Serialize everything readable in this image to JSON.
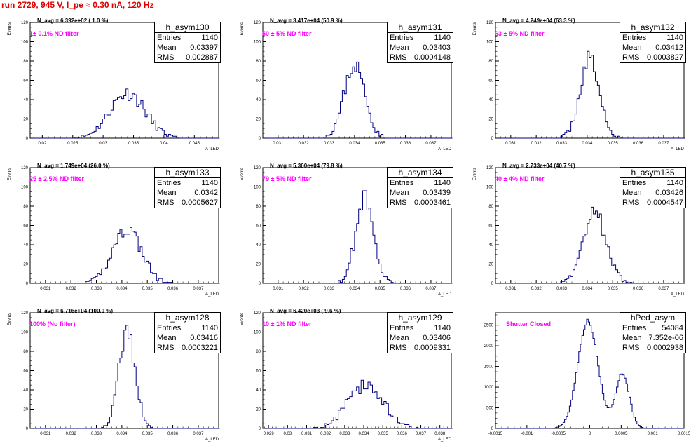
{
  "run_title": "run 2729,   945 V, I_pe ≈ 0.30 nA, 120 Hz",
  "stat_labels": {
    "entries": "Entries",
    "mean": "Mean",
    "rms": "RMS"
  },
  "colors": {
    "title": "#e00000",
    "histogram": "#00007f",
    "annotation": "#ff00ff"
  },
  "chart_data": [
    {
      "type": "histogram",
      "name": "h_asym130",
      "navg": "N_avg = 6.392e+02 ( 1.0 %)",
      "filter": "1± 0.1% ND filter",
      "stats": {
        "entries": "1140",
        "mean": "0.03397",
        "rms": "0.002887"
      },
      "ylabel": "Events",
      "xlabel": "A_LED",
      "xlim": [
        0.018,
        0.049
      ],
      "ylim": [
        0,
        120
      ],
      "xticks": [
        0.02,
        0.025,
        0.03,
        0.035,
        0.04,
        0.045
      ],
      "xtick_labels": [
        "0.02",
        "0.025",
        "0.03",
        "0.035",
        "0.04",
        "0.045"
      ],
      "yticks": [
        0,
        20,
        40,
        60,
        80,
        100,
        120
      ],
      "profile": [
        {
          "center": 0.034,
          "sigma": 0.0029,
          "amp": 47
        }
      ],
      "bin_width": 0.00035,
      "seed": 11
    },
    {
      "type": "histogram",
      "name": "h_asym131",
      "navg": "N_avg = 3.417e+04 (50.9 %)",
      "filter": "50 ± 5% ND filter",
      "stats": {
        "entries": "1140",
        "mean": "0.03403",
        "rms": "0.0004148"
      },
      "ylabel": "Events",
      "xlabel": "A_LED",
      "xlim": [
        0.0304,
        0.0378
      ],
      "ylim": [
        0,
        120
      ],
      "xticks": [
        0.031,
        0.032,
        0.033,
        0.034,
        0.035,
        0.036,
        0.037
      ],
      "xtick_labels": [
        "0.031",
        "0.032",
        "0.033",
        "0.034",
        "0.035",
        "0.036",
        "0.037"
      ],
      "yticks": [
        0,
        20,
        40,
        60,
        80,
        100,
        120
      ],
      "profile": [
        {
          "center": 0.034,
          "sigma": 0.00041,
          "amp": 76
        }
      ],
      "bin_width": 8e-05,
      "seed": 23
    },
    {
      "type": "histogram",
      "name": "h_asym132",
      "navg": "N_avg = 4.249e+04 (63.3 %)",
      "filter": "63 ± 5% ND filter",
      "stats": {
        "entries": "1140",
        "mean": "0.03412",
        "rms": "0.0003827"
      },
      "ylabel": "Events",
      "xlabel": "A_LED",
      "xlim": [
        0.0304,
        0.0378
      ],
      "ylim": [
        0,
        120
      ],
      "xticks": [
        0.031,
        0.032,
        0.033,
        0.034,
        0.035,
        0.036,
        0.037
      ],
      "xtick_labels": [
        "0.031",
        "0.032",
        "0.033",
        "0.034",
        "0.035",
        "0.036",
        "0.037"
      ],
      "yticks": [
        0,
        20,
        40,
        60,
        80,
        100,
        120
      ],
      "profile": [
        {
          "center": 0.0341,
          "sigma": 0.00038,
          "amp": 82
        }
      ],
      "bin_width": 8e-05,
      "seed": 37
    },
    {
      "type": "histogram",
      "name": "h_asym133",
      "navg": "N_avg = 1.749e+04 (26.0 %)",
      "filter": "25 ± 2.5% ND filter",
      "stats": {
        "entries": "1140",
        "mean": "0.0342",
        "rms": "0.0005627"
      },
      "ylabel": "Events",
      "xlabel": "A_LED",
      "xlim": [
        0.0304,
        0.0378
      ],
      "ylim": [
        0,
        120
      ],
      "xticks": [
        0.031,
        0.032,
        0.033,
        0.034,
        0.035,
        0.036,
        0.037
      ],
      "xtick_labels": [
        "0.031",
        "0.032",
        "0.033",
        "0.034",
        "0.035",
        "0.036",
        "0.037"
      ],
      "yticks": [
        0,
        20,
        40,
        60,
        80,
        100,
        120
      ],
      "profile": [
        {
          "center": 0.0342,
          "sigma": 0.00056,
          "amp": 57
        }
      ],
      "bin_width": 8e-05,
      "seed": 41
    },
    {
      "type": "histogram",
      "name": "h_asym134",
      "navg": "N_avg = 5.360e+04 (79.8 %)",
      "filter": "79 ± 5% ND filter",
      "stats": {
        "entries": "1140",
        "mean": "0.03439",
        "rms": "0.0003461"
      },
      "ylabel": "Events",
      "xlabel": "A_LED",
      "xlim": [
        0.0304,
        0.0378
      ],
      "ylim": [
        0,
        120
      ],
      "xticks": [
        0.031,
        0.032,
        0.033,
        0.034,
        0.035,
        0.036,
        0.037
      ],
      "xtick_labels": [
        "0.031",
        "0.032",
        "0.033",
        "0.034",
        "0.035",
        "0.036",
        "0.037"
      ],
      "yticks": [
        0,
        20,
        40,
        60,
        80,
        100,
        120
      ],
      "profile": [
        {
          "center": 0.0344,
          "sigma": 0.00035,
          "amp": 90
        }
      ],
      "bin_width": 8e-05,
      "seed": 53
    },
    {
      "type": "histogram",
      "name": "h_asym135",
      "navg": "N_avg = 2.733e+04 (40.7 %)",
      "filter": "40 ± 4% ND filter",
      "stats": {
        "entries": "1140",
        "mean": "0.03426",
        "rms": "0.0004547"
      },
      "ylabel": "Events",
      "xlabel": "A_LED",
      "xlim": [
        0.0304,
        0.0378
      ],
      "ylim": [
        0,
        120
      ],
      "xticks": [
        0.031,
        0.032,
        0.033,
        0.034,
        0.035,
        0.036,
        0.037
      ],
      "xtick_labels": [
        "0.031",
        "0.032",
        "0.033",
        "0.034",
        "0.035",
        "0.036",
        "0.037"
      ],
      "yticks": [
        0,
        20,
        40,
        60,
        80,
        100,
        120
      ],
      "profile": [
        {
          "center": 0.0343,
          "sigma": 0.00045,
          "amp": 72
        }
      ],
      "bin_width": 8e-05,
      "seed": 67
    },
    {
      "type": "histogram",
      "name": "h_asym128",
      "navg": "N_avg = 6.716e+04 (100.0 %)",
      "filter": "100% (No filter)",
      "stats": {
        "entries": "1140",
        "mean": "0.03416",
        "rms": "0.0003221"
      },
      "ylabel": "Events",
      "xlabel": "A_LED",
      "xlim": [
        0.0304,
        0.0378
      ],
      "ylim": [
        0,
        120
      ],
      "xticks": [
        0.031,
        0.032,
        0.033,
        0.034,
        0.035,
        0.036,
        0.037
      ],
      "xtick_labels": [
        "0.031",
        "0.032",
        "0.033",
        "0.034",
        "0.035",
        "0.036",
        "0.037"
      ],
      "yticks": [
        0,
        20,
        40,
        60,
        80,
        100,
        120
      ],
      "profile": [
        {
          "center": 0.0342,
          "sigma": 0.00032,
          "amp": 102
        }
      ],
      "bin_width": 8e-05,
      "seed": 79
    },
    {
      "type": "histogram",
      "name": "h_asym129",
      "navg": "N_avg = 6.420e+03 ( 9.6 %)",
      "filter": "10 ± 1% ND filter",
      "stats": {
        "entries": "1140",
        "mean": "0.03406",
        "rms": "0.0009331"
      },
      "ylabel": "Events",
      "xlabel": "A_LED",
      "xlim": [
        0.0287,
        0.0386
      ],
      "ylim": [
        0,
        120
      ],
      "xticks": [
        0.029,
        0.03,
        0.031,
        0.032,
        0.033,
        0.034,
        0.035,
        0.036,
        0.037,
        0.038
      ],
      "xtick_labels": [
        "0.029",
        "0.03",
        "0.031",
        "0.032",
        "0.033",
        "0.034",
        "0.035",
        "0.036",
        "0.037",
        "0.038"
      ],
      "yticks": [
        0,
        20,
        40,
        60,
        80,
        100,
        120
      ],
      "profile": [
        {
          "center": 0.0341,
          "sigma": 0.00093,
          "amp": 45
        }
      ],
      "bin_width": 0.00012,
      "seed": 83
    },
    {
      "type": "histogram",
      "name": "hPed_asym",
      "navg": "",
      "filter": "Shutter Closed",
      "stats": {
        "entries": "54084",
        "mean": "7.352e-06",
        "rms": "0.0002938"
      },
      "ylabel": "",
      "xlabel": "",
      "xlim": [
        -0.0015,
        0.0015
      ],
      "ylim": [
        0,
        2800
      ],
      "xticks": [
        -0.0015,
        -0.001,
        -0.0005,
        0,
        0.0005,
        0.001,
        0.0015
      ],
      "xtick_labels": [
        "-0.0015",
        "-0.001",
        "-0.0005",
        "0",
        "0.0005",
        "0.001",
        "0.0015"
      ],
      "yticks": [
        0,
        500,
        1000,
        1500,
        2000,
        2500
      ],
      "profile": [
        {
          "center": -3e-05,
          "sigma": 0.00016,
          "amp": 2600
        },
        {
          "center": 0.00052,
          "sigma": 0.00011,
          "amp": 1320
        }
      ],
      "bin_width": 2.5e-05,
      "seed": 97
    }
  ]
}
